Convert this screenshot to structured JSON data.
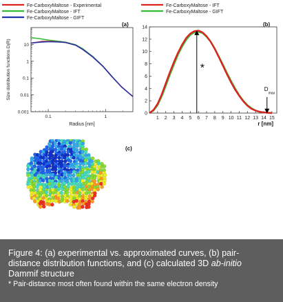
{
  "chart_data": [
    {
      "type": "line",
      "panel_label": "(a)",
      "xlabel": "Radius [nm]",
      "ylabel": "Size distribution functions D(R)",
      "xscale": "log",
      "yscale": "log",
      "xlim": [
        0.05,
        3
      ],
      "ylim": [
        0.001,
        100
      ],
      "xticks": [
        "0.1",
        "1"
      ],
      "yticks": [
        "0.001",
        "0.01",
        "0.1",
        "1",
        "10"
      ],
      "legend": {
        "position": "top",
        "entries": [
          "Fe-CarboxyMaltose - Experimental",
          "Fe-CarboxyMaltose - IFT",
          "Fe-CarboxyMaltose - GIFT"
        ]
      },
      "colors": [
        "#dd2222",
        "#33bb33",
        "#2233aa"
      ],
      "series": [
        {
          "name": "Fe-CarboxyMaltose - Experimental",
          "color": "#dd2222",
          "x": [
            0.05,
            0.08,
            0.12,
            0.2,
            0.3,
            0.4,
            0.6,
            0.9,
            1.3,
            1.9,
            2.6,
            3.0
          ],
          "y": [
            12.0,
            15.0,
            15.0,
            13.0,
            9.0,
            5.0,
            1.8,
            0.5,
            0.12,
            0.03,
            0.012,
            0.008
          ]
        },
        {
          "name": "Fe-CarboxyMaltose - IFT",
          "color": "#33bb33",
          "x": [
            0.05,
            0.07,
            0.1,
            0.15,
            0.2,
            0.3,
            0.4,
            0.6,
            0.9,
            1.3
          ],
          "y": [
            25.0,
            22.0,
            18.0,
            15.5,
            13.5,
            9.5,
            5.5,
            1.9,
            0.5,
            0.12
          ]
        },
        {
          "name": "Fe-CarboxyMaltose - GIFT",
          "color": "#2233aa",
          "x": [
            0.05,
            0.07,
            0.1,
            0.15,
            0.2,
            0.3,
            0.4,
            0.6,
            0.9,
            1.3,
            1.9,
            2.6,
            3.0
          ],
          "y": [
            12.0,
            13.5,
            14.5,
            14.0,
            13.0,
            9.0,
            5.0,
            1.8,
            0.5,
            0.12,
            0.03,
            0.012,
            0.008
          ]
        }
      ]
    },
    {
      "type": "line",
      "panel_label": "(b)",
      "xlabel": "r [nm]",
      "ylabel": "",
      "xlim": [
        0,
        15.6
      ],
      "ylim": [
        0,
        14
      ],
      "xticks": [
        "1",
        "2",
        "3",
        "4",
        "5",
        "6",
        "7",
        "8",
        "9",
        "10",
        "11",
        "12",
        "13",
        "14",
        "15"
      ],
      "yticks": [
        "0",
        "2",
        "4",
        "6",
        "8",
        "10",
        "12",
        "14"
      ],
      "legend": {
        "position": "top",
        "entries": [
          "Fe-CarboxyMaltose - IFT",
          "Fe-CarboxyMaltose - GIFT"
        ]
      },
      "colors": [
        "#dd2222",
        "#33bb33"
      ],
      "annotations": [
        {
          "text": "*",
          "x": 5.8,
          "arrow_from_y": 0,
          "arrow_to_y": 13.4
        },
        {
          "text": "D",
          "subscript": "max",
          "x": 14.4,
          "arrow_to_y": 0.1
        }
      ],
      "series": [
        {
          "name": "Fe-CarboxyMaltose - IFT",
          "color": "#dd2222",
          "x": [
            0,
            0.5,
            1,
            1.5,
            2,
            2.5,
            3,
            3.5,
            4,
            4.5,
            5,
            5.5,
            6,
            6.5,
            7,
            7.5,
            8,
            8.5,
            9,
            9.5,
            10,
            10.5,
            11,
            11.5,
            12,
            12.5,
            13,
            13.5,
            14,
            14.5,
            15
          ],
          "y": [
            0,
            0.5,
            1.5,
            3.0,
            4.8,
            6.6,
            8.3,
            9.8,
            11.1,
            12.2,
            12.9,
            13.3,
            13.4,
            13.1,
            12.5,
            11.6,
            10.4,
            9.1,
            7.7,
            6.3,
            5.0,
            3.8,
            2.8,
            1.9,
            1.2,
            0.7,
            0.4,
            0.2,
            0.1,
            0.05,
            0
          ]
        },
        {
          "name": "Fe-CarboxyMaltose - GIFT",
          "color": "#33bb33",
          "x": [
            0,
            0.5,
            1,
            1.5,
            2,
            2.5,
            3,
            3.5,
            4,
            4.5,
            5,
            5.5,
            6,
            6.5,
            7,
            7.5,
            8,
            8.5,
            9,
            9.5,
            10,
            10.5,
            11,
            11.5,
            12,
            12.5,
            13,
            13.5,
            14,
            14.5,
            15
          ],
          "y": [
            0,
            0.4,
            1.3,
            2.7,
            4.4,
            6.2,
            7.9,
            9.5,
            10.8,
            11.9,
            12.7,
            13.1,
            13.2,
            13.0,
            12.4,
            11.6,
            10.5,
            9.2,
            7.9,
            6.5,
            5.2,
            4.0,
            2.9,
            2.0,
            1.3,
            0.8,
            0.4,
            0.2,
            0.1,
            0.05,
            0
          ]
        }
      ]
    }
  ],
  "structure_panel": {
    "label": "(c)",
    "palette": [
      "#1133cc",
      "#2266ee",
      "#33aaee",
      "#44ddbb",
      "#88dd33",
      "#eeee22",
      "#ff9922",
      "#ee3322"
    ]
  },
  "caption": {
    "line1": "Figure 4: (a) experimental vs. approximated curves, (b) pair-",
    "line2_prefix": "distance distribution functions, and (c) calculated 3D ",
    "line2_italic": "ab-initio",
    "line3": "Dammif structure",
    "note": "* Pair-distance most often found within the same electron density",
    "background": "#5e5e5e"
  }
}
